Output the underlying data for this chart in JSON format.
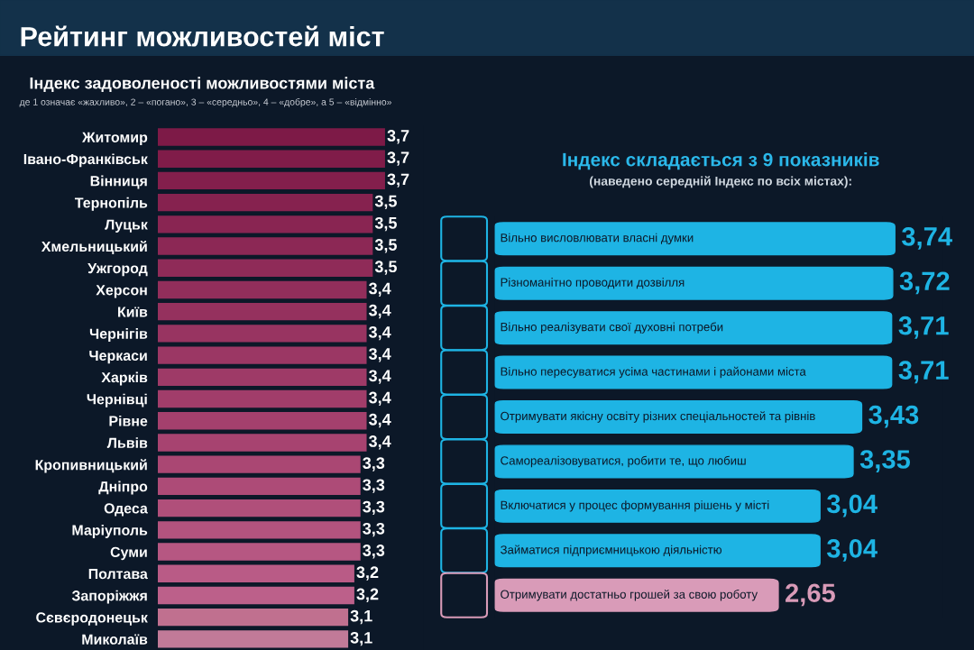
{
  "chart_data": [
    {
      "type": "bar",
      "orientation": "horizontal",
      "title": "Рейтинг можливостей міст",
      "subtitle": "Індекс задоволеності можливостями міста",
      "annotations": [
        "де 1 означає «жахливо», 2 – «погано», 3 – «середньо», 4 – «добре», а 5 – «відмінно»"
      ],
      "categories": [
        "Житомир",
        "Івано-Франківськ",
        "Вінниця",
        "Тернопіль",
        "Луцьк",
        "Хмельницький",
        "Ужгород",
        "Херсон",
        "Київ",
        "Чернігів",
        "Черкаси",
        "Харків",
        "Чернівці",
        "Рівне",
        "Львів",
        "Кропивницький",
        "Дніпро",
        "Одеса",
        "Маріуполь",
        "Суми",
        "Полтава",
        "Запоріжжя",
        "Сєвєродонецьк",
        "Миколаїв"
      ],
      "values": [
        3.7,
        3.7,
        3.7,
        3.5,
        3.5,
        3.5,
        3.5,
        3.4,
        3.4,
        3.4,
        3.4,
        3.4,
        3.4,
        3.4,
        3.4,
        3.3,
        3.3,
        3.3,
        3.3,
        3.3,
        3.2,
        3.2,
        3.1,
        3.1
      ],
      "value_labels": [
        "3,7",
        "3,7",
        "3,7",
        "3,5",
        "3,5",
        "3,5",
        "3,5",
        "3,4",
        "3,4",
        "3,4",
        "3,4",
        "3,4",
        "3,4",
        "3,4",
        "3,4",
        "3,3",
        "3,3",
        "3,3",
        "3,3",
        "3,3",
        "3,2",
        "3,2",
        "3,1",
        "3,1"
      ],
      "colors": [
        "#7d1a47",
        "#801c49",
        "#831f4c",
        "#86224f",
        "#892552",
        "#8c2855",
        "#8f2b58",
        "#922e5b",
        "#95315e",
        "#983461",
        "#9b3764",
        "#9e3a67",
        "#a13d6a",
        "#a4406d",
        "#a74370",
        "#aa4773",
        "#ad4b77",
        "#b04f7a",
        "#b3537e",
        "#b65782",
        "#b95b86",
        "#bc608a",
        "#c0708f",
        "#c17a98"
      ],
      "tick_labels": "y",
      "grid": false,
      "legend": false
    },
    {
      "type": "bar",
      "orientation": "horizontal",
      "title": "Індекс складається з 9 показників",
      "subtitle": "(наведено середній Індекс по всіх містах):",
      "categories": [
        "Вільно висловлювати власні думки",
        "Різноманітно проводити дозвілля",
        "Вільно реалізувати свої духовні потреби",
        "Вільно пересуватися усіма частинами і районами міста",
        "Отримувати якісну освіту різних спеціальностей та рівнів",
        "Самореалізовуватися, робити те, що любиш",
        "Включатися у процес формування рішень у місті",
        "Займатися підприємницькою діяльністю",
        "Отримувати достатньо грошей за свою роботу"
      ],
      "values": [
        3.74,
        3.72,
        3.71,
        3.71,
        3.43,
        3.35,
        3.04,
        3.04,
        2.65
      ],
      "value_labels": [
        "3,74",
        "3,72",
        "3,71",
        "3,71",
        "3,43",
        "3,35",
        "3,04",
        "3,04",
        "2,65"
      ],
      "colors": [
        "#1eb4e4",
        "#1eb4e4",
        "#1eb4e4",
        "#1eb4e4",
        "#1eb4e4",
        "#1eb4e4",
        "#1eb4e4",
        "#1eb4e4",
        "#d99bb8"
      ],
      "tick_labels": false,
      "grid": false,
      "legend": false
    }
  ]
}
